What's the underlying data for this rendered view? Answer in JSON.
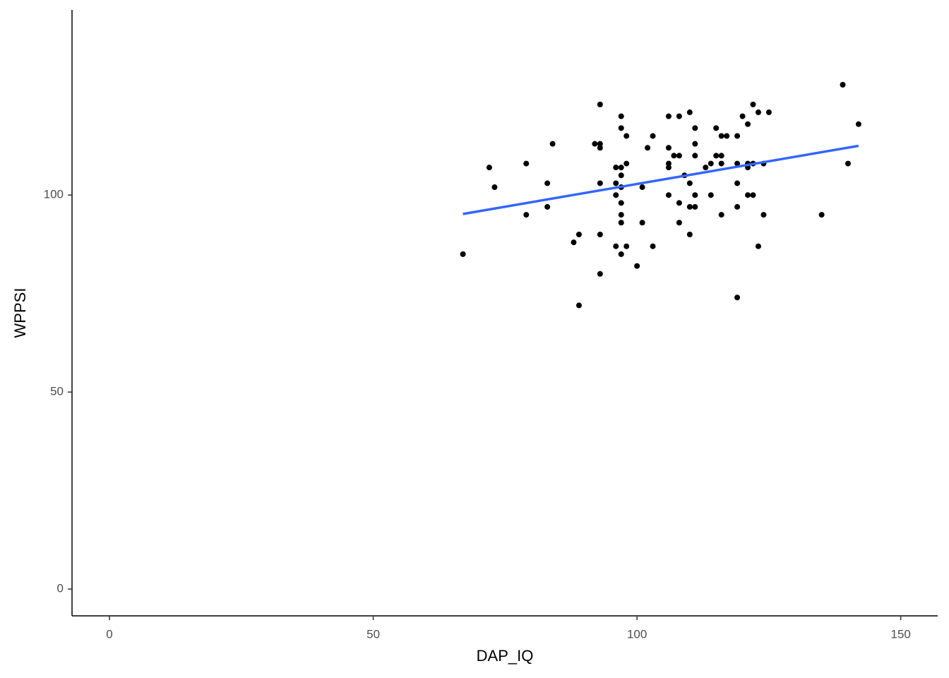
{
  "chart_data": {
    "type": "scatter",
    "x_label": "DAP_IQ",
    "y_label": "WPPSI",
    "xlim": [
      -7.1,
      157
    ],
    "ylim": [
      -6.8,
      147
    ],
    "xticks": [
      0,
      50,
      100,
      150
    ],
    "yticks": [
      0,
      50,
      100
    ],
    "color": "#000000",
    "x": [
      67,
      72,
      73,
      79,
      79,
      83,
      83,
      84,
      88,
      89,
      89,
      92,
      93,
      93,
      93,
      93,
      93,
      93,
      96,
      96,
      96,
      96,
      97,
      97,
      97,
      97,
      97,
      97,
      97,
      97,
      97,
      98,
      98,
      98,
      100,
      101,
      101,
      102,
      103,
      103,
      106,
      106,
      106,
      106,
      106,
      107,
      108,
      108,
      108,
      108,
      109,
      110,
      110,
      110,
      110,
      111,
      111,
      111,
      111,
      111,
      113,
      114,
      114,
      115,
      115,
      116,
      116,
      116,
      116,
      117,
      119,
      119,
      119,
      119,
      119,
      120,
      121,
      121,
      121,
      121,
      122,
      122,
      122,
      123,
      123,
      124,
      124,
      125,
      135,
      139,
      140,
      142
    ],
    "y": [
      85,
      107,
      102,
      108,
      95,
      103,
      97,
      113,
      88,
      90,
      72,
      113,
      123,
      113,
      112,
      103,
      90,
      80,
      107,
      103,
      100,
      87,
      120,
      117,
      107,
      105,
      102,
      98,
      95,
      93,
      85,
      115,
      108,
      87,
      82,
      102,
      93,
      112,
      115,
      87,
      120,
      112,
      108,
      107,
      100,
      110,
      120,
      110,
      98,
      93,
      105,
      121,
      103,
      97,
      90,
      117,
      113,
      110,
      100,
      97,
      107,
      108,
      100,
      117,
      110,
      115,
      110,
      108,
      95,
      115,
      115,
      108,
      103,
      97,
      74,
      120,
      118,
      108,
      107,
      100,
      123,
      108,
      100,
      121,
      87,
      108,
      95,
      121,
      95,
      128,
      108,
      118
    ],
    "fit": {
      "color": "#3366ff",
      "x": [
        67,
        142
      ],
      "y": [
        95.2,
        112.5
      ]
    }
  }
}
